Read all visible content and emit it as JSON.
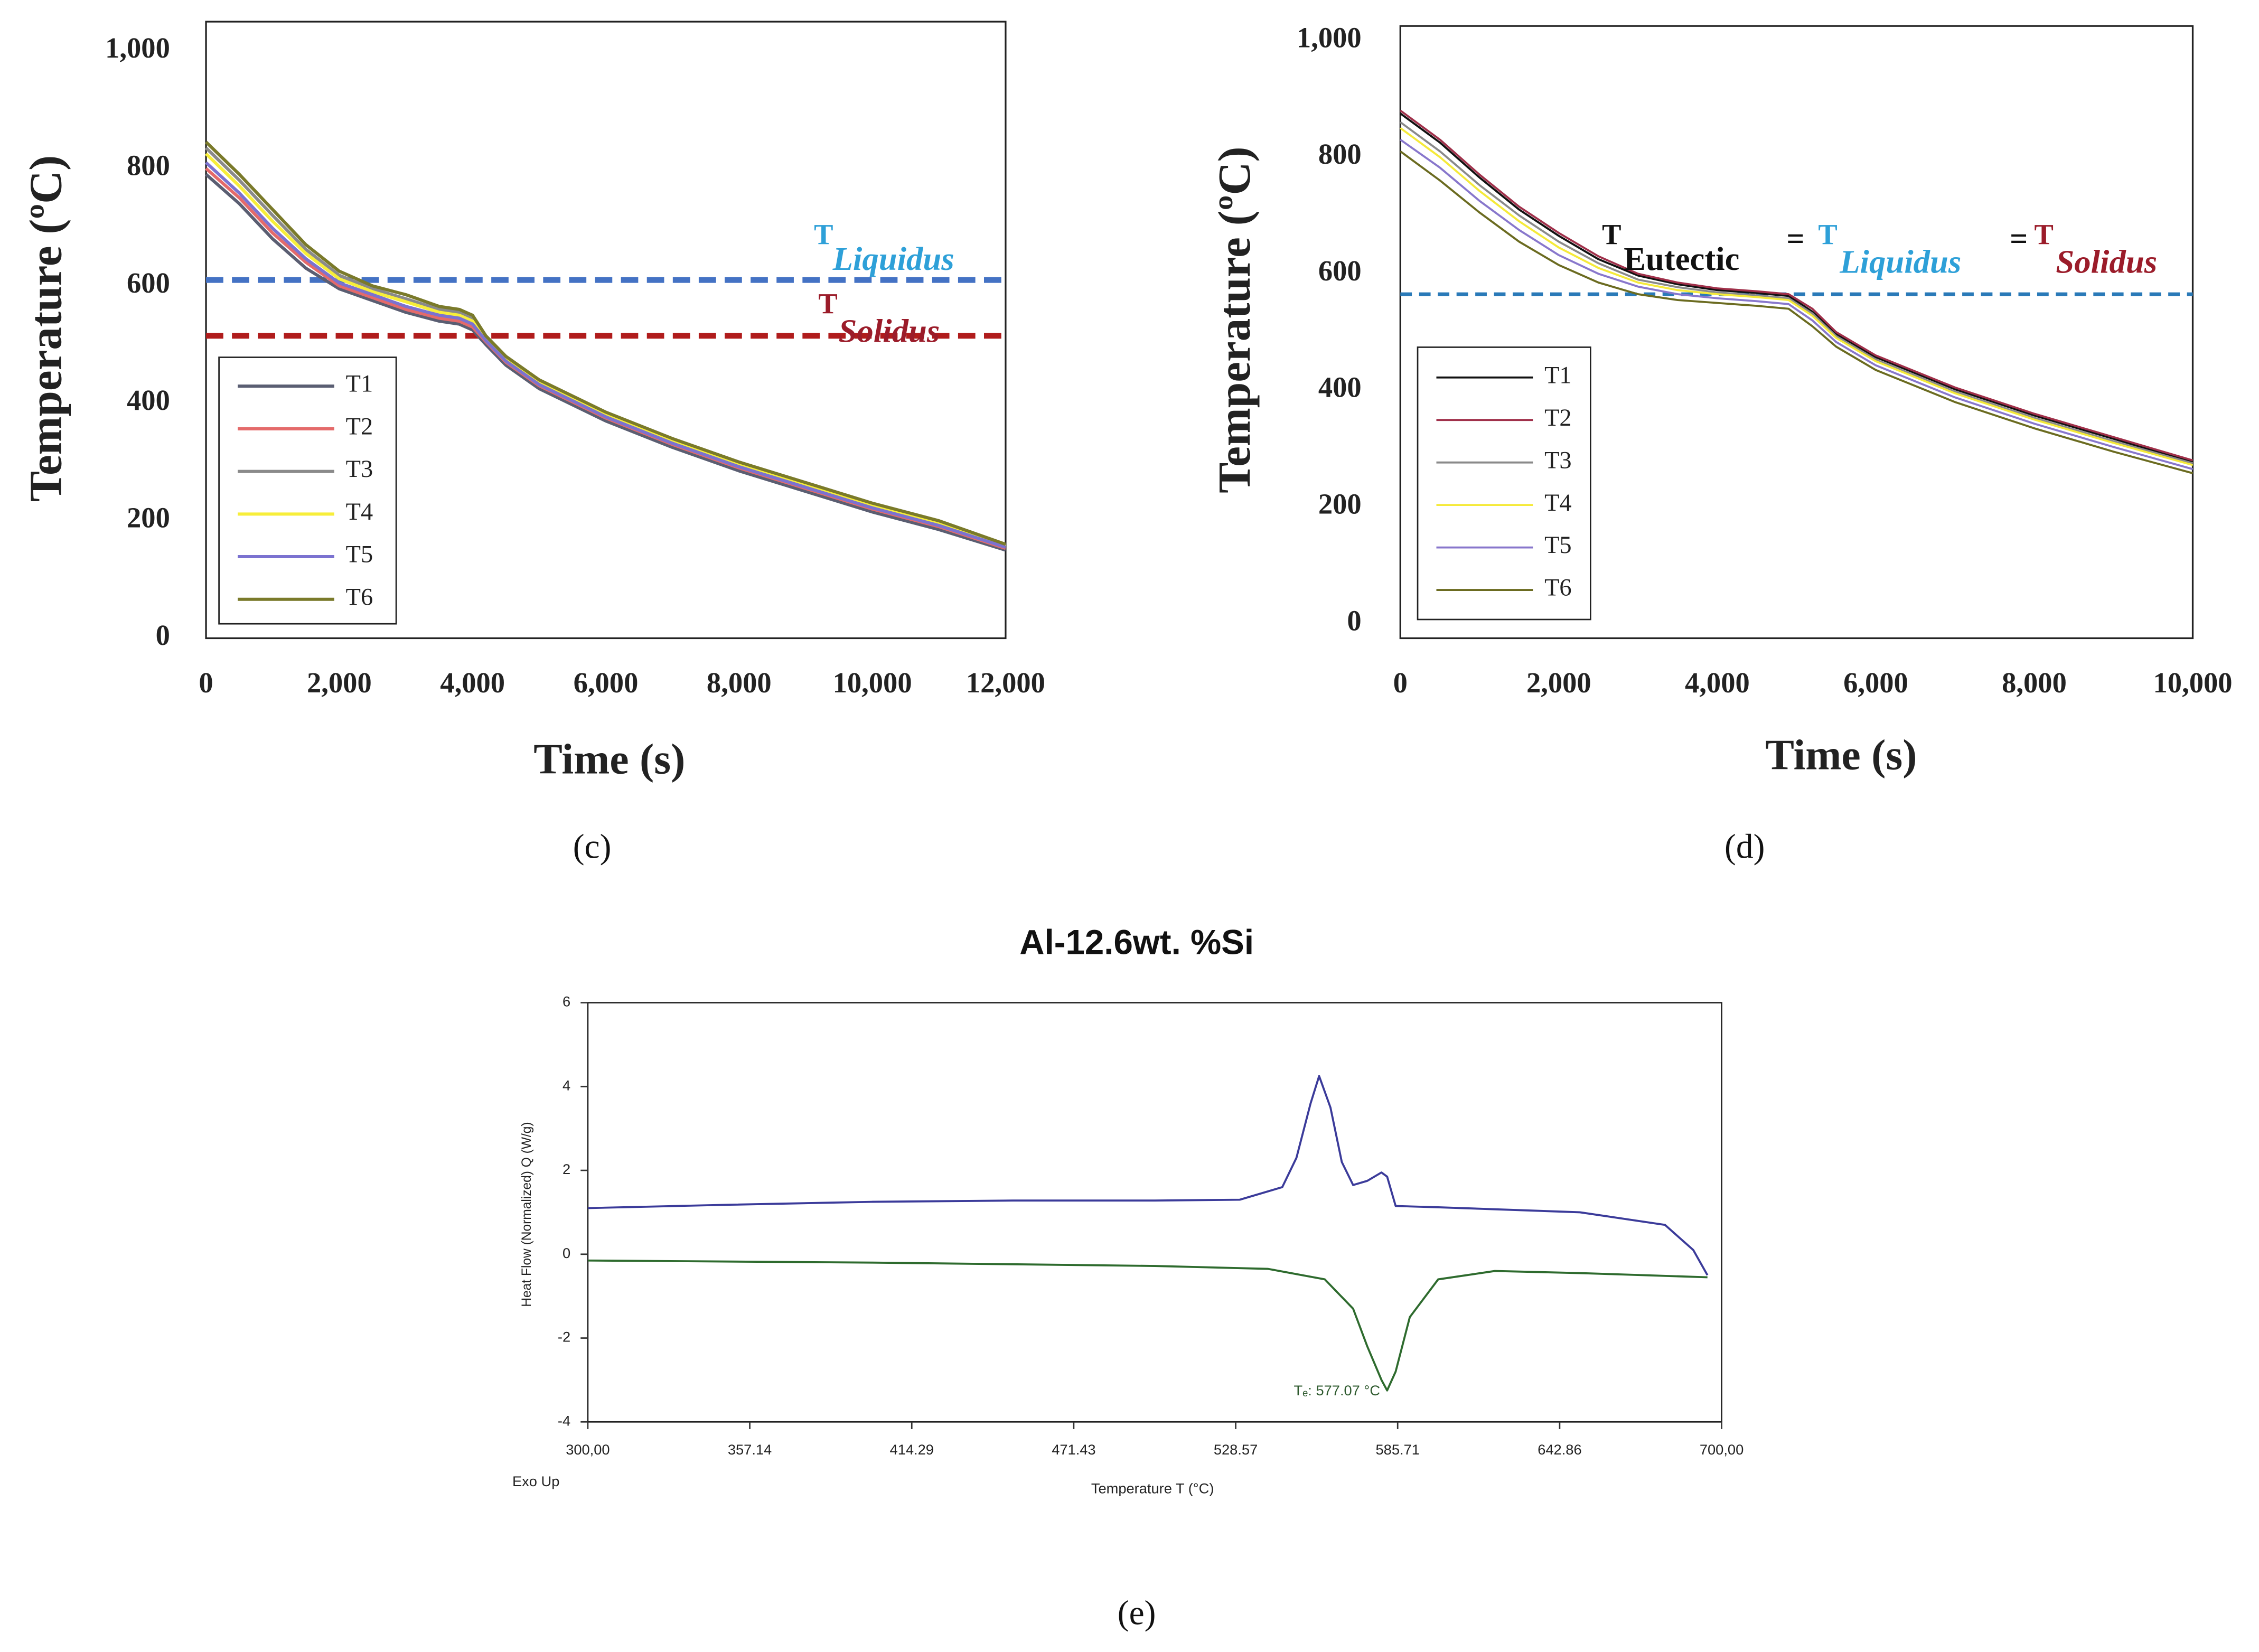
{
  "chart_data": [
    {
      "type": "line",
      "caption": "(c)",
      "xlabel": "Time (s)",
      "ylabel": "Temperature (ºC)",
      "xlim": [
        0,
        12000
      ],
      "ylim": [
        0,
        1050
      ],
      "xticks": [
        0,
        {
          "value": 2000,
          "label": "2,000"
        },
        {
          "value": 4000,
          "label": "4,000"
        },
        {
          "value": 6000,
          "label": "6,000"
        },
        {
          "value": 8000,
          "label": "8,000"
        },
        {
          "value": 10000,
          "label": "10,000"
        },
        {
          "value": 12000,
          "label": "12,000"
        }
      ],
      "yticks": [
        0,
        200,
        400,
        600,
        800,
        {
          "value": 1000,
          "label": "1,000"
        }
      ],
      "x": [
        0,
        500,
        1000,
        1500,
        2000,
        2500,
        3000,
        3500,
        3800,
        4000,
        4200,
        4500,
        5000,
        6000,
        7000,
        8000,
        9000,
        10000,
        11000,
        12000
      ],
      "series": [
        {
          "name": "T1",
          "color": "#5a5e72",
          "values": [
            790,
            740,
            680,
            630,
            595,
            575,
            555,
            540,
            535,
            525,
            500,
            465,
            425,
            370,
            325,
            285,
            250,
            215,
            185,
            150
          ]
        },
        {
          "name": "T2",
          "color": "#e46a6a",
          "values": [
            800,
            750,
            690,
            640,
            600,
            580,
            560,
            545,
            540,
            530,
            505,
            470,
            430,
            375,
            330,
            290,
            255,
            220,
            190,
            153
          ]
        },
        {
          "name": "T3",
          "color": "#8a8a8a",
          "values": [
            835,
            780,
            720,
            662,
            618,
            595,
            578,
            560,
            555,
            545,
            512,
            477,
            437,
            382,
            337,
            297,
            262,
            227,
            197,
            158
          ]
        },
        {
          "name": "T4",
          "color": "#f7ee3a",
          "values": [
            825,
            770,
            710,
            655,
            612,
            590,
            573,
            555,
            550,
            540,
            510,
            475,
            435,
            380,
            335,
            295,
            260,
            225,
            195,
            156
          ]
        },
        {
          "name": "T5",
          "color": "#7b72d0",
          "values": [
            810,
            758,
            698,
            646,
            605,
            585,
            565,
            550,
            545,
            535,
            507,
            472,
            432,
            377,
            332,
            292,
            257,
            222,
            192,
            155
          ]
        },
        {
          "name": "T6",
          "color": "#7a7a2a",
          "values": [
            845,
            790,
            730,
            670,
            625,
            600,
            585,
            565,
            560,
            550,
            515,
            480,
            440,
            385,
            340,
            300,
            265,
            230,
            200,
            160
          ]
        }
      ],
      "hlines": [
        {
          "value": 610,
          "color": "#4472c4"
        },
        {
          "value": 515,
          "color": "#b01c1c"
        }
      ],
      "annotations": [
        {
          "text": "T",
          "sub": "Liquidus",
          "color": "#2ea0d8"
        },
        {
          "text": "T",
          "sub": "Solidus",
          "color": "#9b1c2a"
        }
      ]
    },
    {
      "type": "line",
      "caption": "(d)",
      "xlabel": "Time (s)",
      "ylabel": "Temperature (ºC)",
      "xlim": [
        0,
        10000
      ],
      "ylim": [
        -25,
        1025
      ],
      "xticks": [
        0,
        {
          "value": 2000,
          "label": "2,000"
        },
        {
          "value": 4000,
          "label": "4,000"
        },
        {
          "value": 6000,
          "label": "6,000"
        },
        {
          "value": 8000,
          "label": "8,000"
        },
        {
          "value": 10000,
          "label": "10,000"
        }
      ],
      "yticks": [
        0,
        200,
        400,
        600,
        800,
        {
          "value": 1000,
          "label": "1,000"
        }
      ],
      "x": [
        0,
        500,
        1000,
        1500,
        2000,
        2500,
        3000,
        3500,
        4000,
        4500,
        4900,
        5200,
        5500,
        6000,
        7000,
        8000,
        9000,
        10000
      ],
      "series": [
        {
          "name": "T1",
          "color": "#111111",
          "values": [
            875,
            825,
            765,
            710,
            665,
            625,
            597,
            582,
            572,
            567,
            562,
            535,
            497,
            457,
            402,
            357,
            317,
            277
          ]
        },
        {
          "name": "T2",
          "color": "#a0304a",
          "values": [
            880,
            830,
            770,
            715,
            670,
            630,
            600,
            585,
            575,
            570,
            565,
            540,
            500,
            460,
            405,
            360,
            320,
            280
          ]
        },
        {
          "name": "T3",
          "color": "#8a8a8a",
          "values": [
            860,
            810,
            752,
            700,
            655,
            618,
            590,
            577,
            568,
            563,
            558,
            532,
            493,
            453,
            398,
            353,
            313,
            275
          ]
        },
        {
          "name": "T4",
          "color": "#f5ea3a",
          "values": [
            850,
            800,
            742,
            690,
            645,
            610,
            585,
            572,
            565,
            560,
            555,
            528,
            490,
            450,
            395,
            350,
            310,
            272
          ]
        },
        {
          "name": "T5",
          "color": "#8877cc",
          "values": [
            830,
            782,
            725,
            675,
            632,
            600,
            578,
            565,
            558,
            553,
            548,
            520,
            483,
            443,
            388,
            343,
            303,
            265
          ]
        },
        {
          "name": "T6",
          "color": "#6b6b20",
          "values": [
            810,
            760,
            705,
            655,
            615,
            585,
            565,
            555,
            550,
            545,
            540,
            510,
            475,
            435,
            380,
            335,
            295,
            258
          ]
        }
      ],
      "hlines": [
        {
          "value": 565,
          "color": "#2a7ab8"
        }
      ],
      "annotations": [
        {
          "text": "T",
          "sub": "Eutectic",
          "color": "#111111"
        },
        {
          "text": "="
        },
        {
          "text": "T",
          "sub": "Liquidus",
          "color": "#2ea0d8"
        },
        {
          "text": "="
        },
        {
          "text": "T",
          "sub": "Solidus",
          "color": "#9b1c2a"
        }
      ]
    },
    {
      "type": "line",
      "caption": "(e)",
      "title": "Al-12.6wt. %Si",
      "xlabel": "Temperature T (°C)",
      "ylabel": "Heat Flow (Normalized) Q (W/g)",
      "note": "Exo Up",
      "xlim": [
        300,
        700
      ],
      "ylim": [
        -4,
        6
      ],
      "xticks": [
        {
          "value": 300,
          "label": "300,00"
        },
        357.14,
        414.29,
        471.43,
        528.57,
        585.71,
        642.86,
        {
          "value": 700,
          "label": "700,00"
        }
      ],
      "yticks": [
        -4,
        -2,
        0,
        2,
        4,
        6
      ],
      "series": [
        {
          "color": "#3b3b9a",
          "x": [
            300,
            350,
            400,
            450,
            500,
            530,
            545,
            550,
            555,
            558,
            562,
            566,
            570,
            575,
            580,
            582,
            585,
            600,
            650,
            680,
            690,
            695
          ],
          "values": [
            1.1,
            1.18,
            1.25,
            1.28,
            1.28,
            1.3,
            1.6,
            2.3,
            3.6,
            4.25,
            3.5,
            2.2,
            1.65,
            1.75,
            1.95,
            1.85,
            1.15,
            1.12,
            1.0,
            0.7,
            0.1,
            -0.5
          ]
        },
        {
          "color": "#2e6b2e",
          "x": [
            300,
            400,
            500,
            540,
            560,
            570,
            575,
            580,
            582,
            585,
            590,
            600,
            620,
            650,
            695
          ],
          "values": [
            -0.15,
            -0.2,
            -0.28,
            -0.35,
            -0.6,
            -1.3,
            -2.2,
            -3.0,
            -3.25,
            -2.8,
            -1.5,
            -0.6,
            -0.4,
            -0.45,
            -0.55
          ]
        }
      ],
      "annotations": [
        {
          "text": "Tₑ: 577.07 °C"
        }
      ]
    }
  ]
}
